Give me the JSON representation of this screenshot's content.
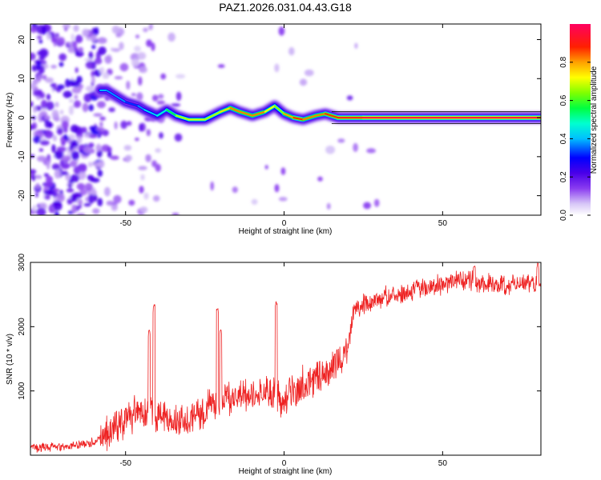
{
  "chart_data": [
    {
      "type": "heatmap",
      "title": "PAZ1.2026.031.04.43.G18",
      "xlabel": "Height of straight line (km)",
      "ylabel": "Frequency (Hz)",
      "xlim": [
        -80,
        81
      ],
      "ylim": [
        -25,
        24
      ],
      "xticks": [
        "-50",
        "0",
        "50"
      ],
      "yticks": [
        "20",
        "10",
        "0",
        "-10",
        "-20"
      ],
      "colorbar": {
        "label": "Normalized spectral amplitude",
        "ticks": [
          "0.0",
          "0.2",
          "0.4",
          "0.6",
          "0.8"
        ],
        "range": [
          0,
          1
        ]
      },
      "ridge": [
        {
          "x": -58,
          "f": 7,
          "a": 0.35
        },
        {
          "x": -56,
          "f": 7,
          "a": 0.45
        },
        {
          "x": -50,
          "f": 4,
          "a": 0.3
        },
        {
          "x": -46,
          "f": 3,
          "a": 0.35
        },
        {
          "x": -44,
          "f": 2,
          "a": 0.4
        },
        {
          "x": -40,
          "f": 0.5,
          "a": 0.45
        },
        {
          "x": -37,
          "f": 2,
          "a": 0.5
        },
        {
          "x": -34,
          "f": 0.5,
          "a": 0.6
        },
        {
          "x": -30,
          "f": -0.5,
          "a": 0.75
        },
        {
          "x": -25,
          "f": -0.5,
          "a": 0.65
        },
        {
          "x": -20,
          "f": 1.5,
          "a": 0.7
        },
        {
          "x": -17,
          "f": 2.5,
          "a": 0.8
        },
        {
          "x": -14,
          "f": 1.5,
          "a": 0.85
        },
        {
          "x": -10,
          "f": 0.5,
          "a": 0.8
        },
        {
          "x": -6,
          "f": 1.5,
          "a": 0.85
        },
        {
          "x": -3,
          "f": 3,
          "a": 0.6
        },
        {
          "x": 0,
          "f": 1,
          "a": 0.7
        },
        {
          "x": 3,
          "f": 0,
          "a": 0.9
        },
        {
          "x": 6,
          "f": -0.5,
          "a": 0.85
        },
        {
          "x": 10,
          "f": 0.5,
          "a": 0.8
        },
        {
          "x": 13,
          "f": 1,
          "a": 0.85
        },
        {
          "x": 17,
          "f": 0,
          "a": 0.9
        },
        {
          "x": 25,
          "f": 0,
          "a": 0.95
        },
        {
          "x": 81,
          "f": 0,
          "a": 1.0
        }
      ]
    },
    {
      "type": "line",
      "xlabel": "Height of straight line (km)",
      "ylabel": "SNR (10 * v/v)",
      "xlim": [
        -80,
        81
      ],
      "ylim": [
        0,
        3000
      ],
      "xticks": [
        "-50",
        "0",
        "50"
      ],
      "yticks": [
        "3000",
        "2000",
        "1000"
      ],
      "color": "#ee2222",
      "trend": {
        "x": [
          -80,
          -70,
          -60,
          -55,
          -50,
          -45,
          -40,
          -35,
          -30,
          -25,
          -20,
          -15,
          -10,
          -5,
          0,
          5,
          10,
          15,
          20,
          22,
          25,
          30,
          40,
          50,
          60,
          70,
          81
        ],
        "y": [
          120,
          120,
          200,
          380,
          550,
          700,
          650,
          520,
          560,
          720,
          850,
          920,
          950,
          1000,
          820,
          1080,
          1200,
          1400,
          1600,
          2300,
          2330,
          2420,
          2550,
          2680,
          2700,
          2650,
          2680
        ]
      },
      "spikes": [
        {
          "x": -41,
          "y": 2350
        },
        {
          "x": -42.5,
          "y": 1950
        },
        {
          "x": -21,
          "y": 2290
        },
        {
          "x": -20,
          "y": 1950
        },
        {
          "x": -2.5,
          "y": 2400
        },
        {
          "x": 60,
          "y": 2950
        },
        {
          "x": 80,
          "y": 3000
        }
      ]
    }
  ]
}
